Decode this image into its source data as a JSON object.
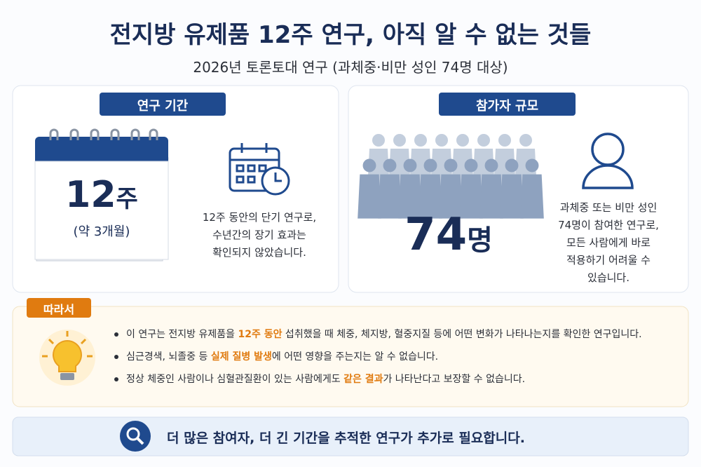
{
  "header": {
    "title": "전지방 유제품 12주 연구, 아직 알 수 없는 것들",
    "subtitle": "2026년 토론토대 연구 (과체중·비만 성인 74명 대상)"
  },
  "duration": {
    "badge": "연구 기간",
    "number": "12",
    "unit": "주",
    "note": "(약 3개월)",
    "description": [
      "12주 동안의 단기 연구로,",
      "수년간의 장기 효과는",
      "확인되지 않았습니다."
    ]
  },
  "participants": {
    "badge": "참가자 규모",
    "number": "74",
    "unit": "명",
    "description": [
      "과체중 또는 비만 성인",
      "74명이 참여한 연구로,",
      "모든 사람에게 바로",
      "적용하기 어려울 수",
      "있습니다."
    ]
  },
  "conclusion": {
    "badge": "따라서",
    "bullets": [
      {
        "before": "이 연구는 전지방 유제품을 ",
        "highlight": "12주 동안",
        "after": " 섭취했을 때 체중, 체지방, 혈중지질 등에 어떤 변화가 나타나는지를 확인한 연구입니다."
      },
      {
        "before": "심근경색, 뇌졸중 등 ",
        "highlight": "실제 질병 발생",
        "after": "에 어떤 영향을 주는지는 알 수 없습니다."
      },
      {
        "before": "정상 체중인 사람이나 심혈관질환이 있는 사람에게도 ",
        "highlight": "같은 결과",
        "after": "가 나타난다고 보장할 수 없습니다."
      }
    ]
  },
  "footer": {
    "text": "더 많은 참여자, 더 긴 기간을 추적한 연구가 추가로 필요합니다."
  }
}
